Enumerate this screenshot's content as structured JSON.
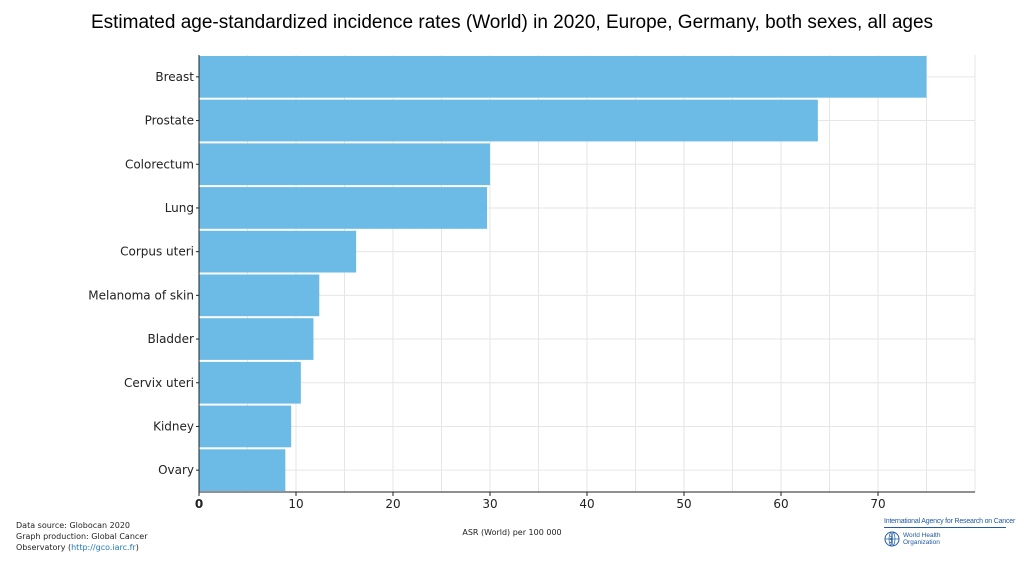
{
  "title": "Estimated age-standardized incidence rates (World) in 2020, Europe, Germany, both sexes, all ages",
  "footer": {
    "source_line1": "Data source: Globocan 2020",
    "source_line2": "Graph production: Global Cancer",
    "source_line3_prefix": "Observatory (",
    "source_link": "http://gco.iarc.fr",
    "source_line3_suffix": ")"
  },
  "logos": {
    "iarc": "International Agency for Research on Cancer",
    "who_line1": "World Health",
    "who_line2": "Organization",
    "who_icon": "who-emblem-icon"
  },
  "colors": {
    "bar": "#6bbbe6",
    "grid": "#e6e6e6",
    "axis": "#222222",
    "link": "#1f77c4",
    "logo": "#1f5aa6"
  },
  "chart_data": {
    "type": "bar",
    "orientation": "horizontal",
    "categories": [
      "Breast",
      "Prostate",
      "Colorectum",
      "Lung",
      "Corpus uteri",
      "Melanoma of skin",
      "Bladder",
      "Cervix uteri",
      "Kidney",
      "Ovary"
    ],
    "values": [
      75.0,
      63.8,
      30.0,
      29.7,
      16.2,
      12.4,
      11.8,
      10.5,
      9.5,
      8.9
    ],
    "xlabel": "ASR (World) per 100 000",
    "ylabel": "",
    "xlim": [
      0,
      80
    ],
    "xticks": [
      0,
      10,
      20,
      30,
      40,
      50,
      60,
      70
    ],
    "grid": true
  }
}
